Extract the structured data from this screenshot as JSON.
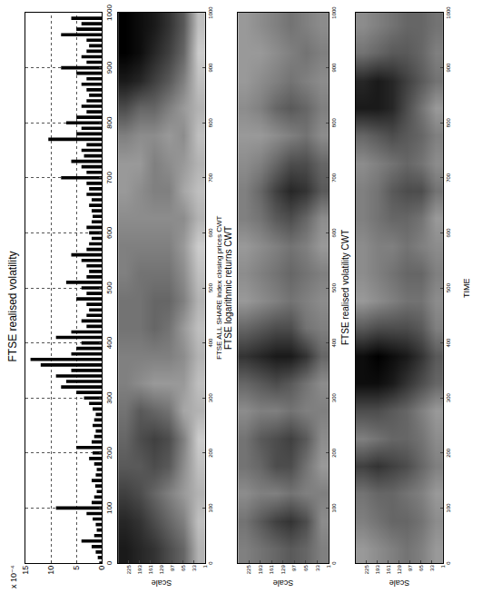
{
  "chart_data": [
    {
      "type": "bar",
      "title": "FTSE realised volatility",
      "color": "#000000",
      "grid": true,
      "annotations": [
        "x 10⁻⁴"
      ],
      "x": [
        0,
        10,
        20,
        30,
        40,
        50,
        60,
        70,
        80,
        90,
        100,
        110,
        120,
        130,
        140,
        150,
        160,
        170,
        180,
        190,
        200,
        210,
        220,
        230,
        240,
        250,
        260,
        270,
        280,
        290,
        300,
        310,
        320,
        330,
        340,
        350,
        360,
        370,
        380,
        390,
        400,
        410,
        420,
        430,
        440,
        450,
        460,
        470,
        480,
        490,
        500,
        510,
        520,
        530,
        540,
        550,
        560,
        570,
        580,
        590,
        600,
        610,
        620,
        630,
        640,
        650,
        660,
        670,
        680,
        690,
        700,
        710,
        720,
        730,
        740,
        750,
        760,
        770,
        780,
        790,
        800,
        810,
        820,
        830,
        840,
        850,
        860,
        870,
        880,
        890,
        900,
        910,
        920,
        930,
        940,
        950,
        960,
        970,
        980,
        990
      ],
      "values": [
        0.5,
        0.8,
        1.2,
        2,
        4,
        1.5,
        1,
        1.2,
        1.8,
        3,
        9,
        2,
        1.5,
        1,
        1.3,
        2,
        1.2,
        1,
        1.5,
        2.5,
        1.8,
        5,
        2,
        1.5,
        1.2,
        1.8,
        1.5,
        1.2,
        1.8,
        2.5,
        3.5,
        5,
        8,
        7,
        9,
        6,
        12,
        14,
        6,
        5,
        4,
        9,
        6,
        3,
        4,
        3,
        2.5,
        3,
        5,
        3,
        4,
        7,
        3,
        2.5,
        3,
        4,
        6,
        3,
        2.5,
        2,
        2.5,
        3,
        2,
        1.8,
        2,
        2.5,
        2,
        3,
        2.5,
        3,
        8,
        3,
        4,
        6,
        3.5,
        4,
        3,
        10.5,
        5,
        4,
        7,
        5,
        3,
        4,
        3,
        2.5,
        3,
        4,
        3,
        5,
        8,
        3,
        4,
        3,
        2.5,
        3,
        8,
        5,
        4,
        6
      ],
      "xlim": [
        0,
        1000
      ],
      "xticks": [
        0,
        100,
        200,
        300,
        400,
        500,
        600,
        700,
        800,
        900,
        1000
      ],
      "ylim": [
        0,
        15
      ],
      "yticks": [
        0,
        5,
        10,
        15
      ]
    },
    {
      "type": "heatmap",
      "x_label": "FTSE ALL SHARE index closing prices CWT",
      "y_label": "Scale",
      "colors": [
        "#000000",
        "#ffffff"
      ],
      "zlim": [
        0,
        1
      ],
      "x": [
        25,
        75,
        125,
        175,
        225,
        275,
        325,
        375,
        425,
        475,
        525,
        575,
        625,
        675,
        725,
        775,
        825,
        875,
        925,
        975
      ],
      "y": [
        22.25,
        64.75,
        107.25,
        149.75,
        192.25,
        234.75
      ],
      "z": [
        [
          0.7,
          0.75,
          0.7,
          0.75,
          0.8,
          0.7,
          0.75,
          0.7,
          0.75,
          0.7,
          0.75,
          0.8,
          0.7,
          0.75,
          0.7,
          0.75,
          0.7,
          0.75,
          0.8,
          0.75
        ],
        [
          0.4,
          0.5,
          0.6,
          0.55,
          0.5,
          0.65,
          0.6,
          0.55,
          0.6,
          0.5,
          0.55,
          0.6,
          0.55,
          0.65,
          0.6,
          0.55,
          0.6,
          0.5,
          0.4,
          0.35
        ],
        [
          0.3,
          0.4,
          0.5,
          0.35,
          0.3,
          0.45,
          0.6,
          0.5,
          0.45,
          0.4,
          0.45,
          0.5,
          0.55,
          0.5,
          0.55,
          0.6,
          0.5,
          0.35,
          0.25,
          0.2
        ],
        [
          0.2,
          0.3,
          0.4,
          0.3,
          0.25,
          0.4,
          0.6,
          0.5,
          0.4,
          0.4,
          0.45,
          0.5,
          0.55,
          0.5,
          0.5,
          0.55,
          0.4,
          0.25,
          0.15,
          0.1
        ],
        [
          0.15,
          0.2,
          0.3,
          0.35,
          0.3,
          0.35,
          0.55,
          0.5,
          0.45,
          0.45,
          0.45,
          0.5,
          0.55,
          0.55,
          0.6,
          0.55,
          0.4,
          0.15,
          0.05,
          0.05
        ],
        [
          0.1,
          0.15,
          0.25,
          0.35,
          0.4,
          0.45,
          0.5,
          0.5,
          0.45,
          0.45,
          0.5,
          0.5,
          0.55,
          0.6,
          0.6,
          0.5,
          0.3,
          0.1,
          0.0,
          0.0
        ]
      ],
      "xlim": [
        0,
        1000
      ],
      "xticks": [
        0,
        100,
        200,
        300,
        400,
        500,
        600,
        700,
        800,
        900,
        1000
      ],
      "ylim": [
        1,
        256
      ],
      "yticks": [
        1,
        33,
        65,
        97,
        129,
        161,
        193,
        225
      ]
    },
    {
      "type": "heatmap",
      "title": "FTSE logarithmic returns CWT",
      "y_label": "Scale",
      "colors": [
        "#000000",
        "#ffffff"
      ],
      "zlim": [
        0,
        1
      ],
      "x": [
        25,
        75,
        125,
        175,
        225,
        275,
        325,
        375,
        425,
        475,
        525,
        575,
        625,
        675,
        725,
        775,
        825,
        875,
        925,
        975
      ],
      "y": [
        22.25,
        64.75,
        107.25,
        149.75,
        192.25,
        234.75
      ],
      "z": [
        [
          0.5,
          0.55,
          0.5,
          0.6,
          0.55,
          0.5,
          0.55,
          0.4,
          0.5,
          0.55,
          0.5,
          0.6,
          0.55,
          0.35,
          0.4,
          0.55,
          0.5,
          0.55,
          0.5,
          0.55
        ],
        [
          0.4,
          0.3,
          0.5,
          0.45,
          0.35,
          0.5,
          0.45,
          0.2,
          0.45,
          0.5,
          0.45,
          0.5,
          0.4,
          0.2,
          0.3,
          0.45,
          0.4,
          0.5,
          0.45,
          0.5
        ],
        [
          0.35,
          0.2,
          0.45,
          0.3,
          0.25,
          0.45,
          0.35,
          0.1,
          0.3,
          0.45,
          0.4,
          0.45,
          0.3,
          0.15,
          0.3,
          0.5,
          0.35,
          0.45,
          0.5,
          0.45
        ],
        [
          0.4,
          0.25,
          0.5,
          0.3,
          0.3,
          0.5,
          0.3,
          0.1,
          0.3,
          0.5,
          0.45,
          0.5,
          0.35,
          0.25,
          0.4,
          0.55,
          0.4,
          0.5,
          0.55,
          0.5
        ],
        [
          0.45,
          0.35,
          0.5,
          0.4,
          0.35,
          0.5,
          0.35,
          0.15,
          0.35,
          0.55,
          0.5,
          0.55,
          0.45,
          0.4,
          0.5,
          0.6,
          0.5,
          0.55,
          0.6,
          0.55
        ],
        [
          0.5,
          0.45,
          0.55,
          0.45,
          0.45,
          0.55,
          0.4,
          0.2,
          0.4,
          0.6,
          0.55,
          0.6,
          0.5,
          0.5,
          0.55,
          0.6,
          0.55,
          0.6,
          0.6,
          0.6
        ]
      ],
      "xlim": [
        0,
        1000
      ],
      "xticks": [
        0,
        100,
        200,
        300,
        400,
        500,
        600,
        700,
        800,
        900,
        1000
      ],
      "ylim": [
        1,
        256
      ],
      "yticks": [
        1,
        33,
        65,
        97,
        129,
        161,
        193,
        225
      ]
    },
    {
      "type": "heatmap",
      "title": "FTSE realised volatility CWT",
      "x_label": "TIME",
      "y_label": "Scale",
      "colors": [
        "#000000",
        "#ffffff"
      ],
      "zlim": [
        0,
        1
      ],
      "x": [
        25,
        75,
        125,
        175,
        225,
        275,
        325,
        375,
        425,
        475,
        525,
        575,
        625,
        675,
        725,
        775,
        825,
        875,
        925,
        975
      ],
      "y": [
        22.25,
        64.75,
        107.25,
        149.75,
        192.25,
        234.75
      ],
      "z": [
        [
          0.6,
          0.55,
          0.6,
          0.5,
          0.55,
          0.6,
          0.4,
          0.35,
          0.5,
          0.55,
          0.5,
          0.55,
          0.6,
          0.45,
          0.55,
          0.5,
          0.6,
          0.45,
          0.5,
          0.45
        ],
        [
          0.5,
          0.45,
          0.5,
          0.4,
          0.45,
          0.5,
          0.3,
          0.2,
          0.35,
          0.45,
          0.4,
          0.5,
          0.45,
          0.3,
          0.45,
          0.4,
          0.45,
          0.35,
          0.4,
          0.4
        ],
        [
          0.45,
          0.4,
          0.45,
          0.3,
          0.4,
          0.4,
          0.2,
          0.1,
          0.3,
          0.45,
          0.4,
          0.45,
          0.4,
          0.3,
          0.4,
          0.35,
          0.3,
          0.25,
          0.35,
          0.4
        ],
        [
          0.5,
          0.4,
          0.4,
          0.25,
          0.4,
          0.35,
          0.1,
          0.05,
          0.3,
          0.5,
          0.45,
          0.5,
          0.4,
          0.35,
          0.45,
          0.3,
          0.15,
          0.15,
          0.35,
          0.45
        ],
        [
          0.55,
          0.45,
          0.4,
          0.2,
          0.45,
          0.3,
          0.05,
          0.0,
          0.3,
          0.55,
          0.5,
          0.5,
          0.45,
          0.45,
          0.5,
          0.35,
          0.1,
          0.1,
          0.4,
          0.5
        ],
        [
          0.6,
          0.5,
          0.45,
          0.25,
          0.5,
          0.3,
          0.05,
          0.05,
          0.35,
          0.6,
          0.55,
          0.55,
          0.5,
          0.5,
          0.55,
          0.4,
          0.1,
          0.15,
          0.45,
          0.55
        ]
      ],
      "xlim": [
        0,
        1000
      ],
      "xticks": [
        0,
        100,
        200,
        300,
        400,
        500,
        600,
        700,
        800,
        900,
        1000
      ],
      "ylim": [
        1,
        256
      ],
      "yticks": [
        1,
        33,
        65,
        97,
        129,
        161,
        193,
        225
      ]
    }
  ]
}
